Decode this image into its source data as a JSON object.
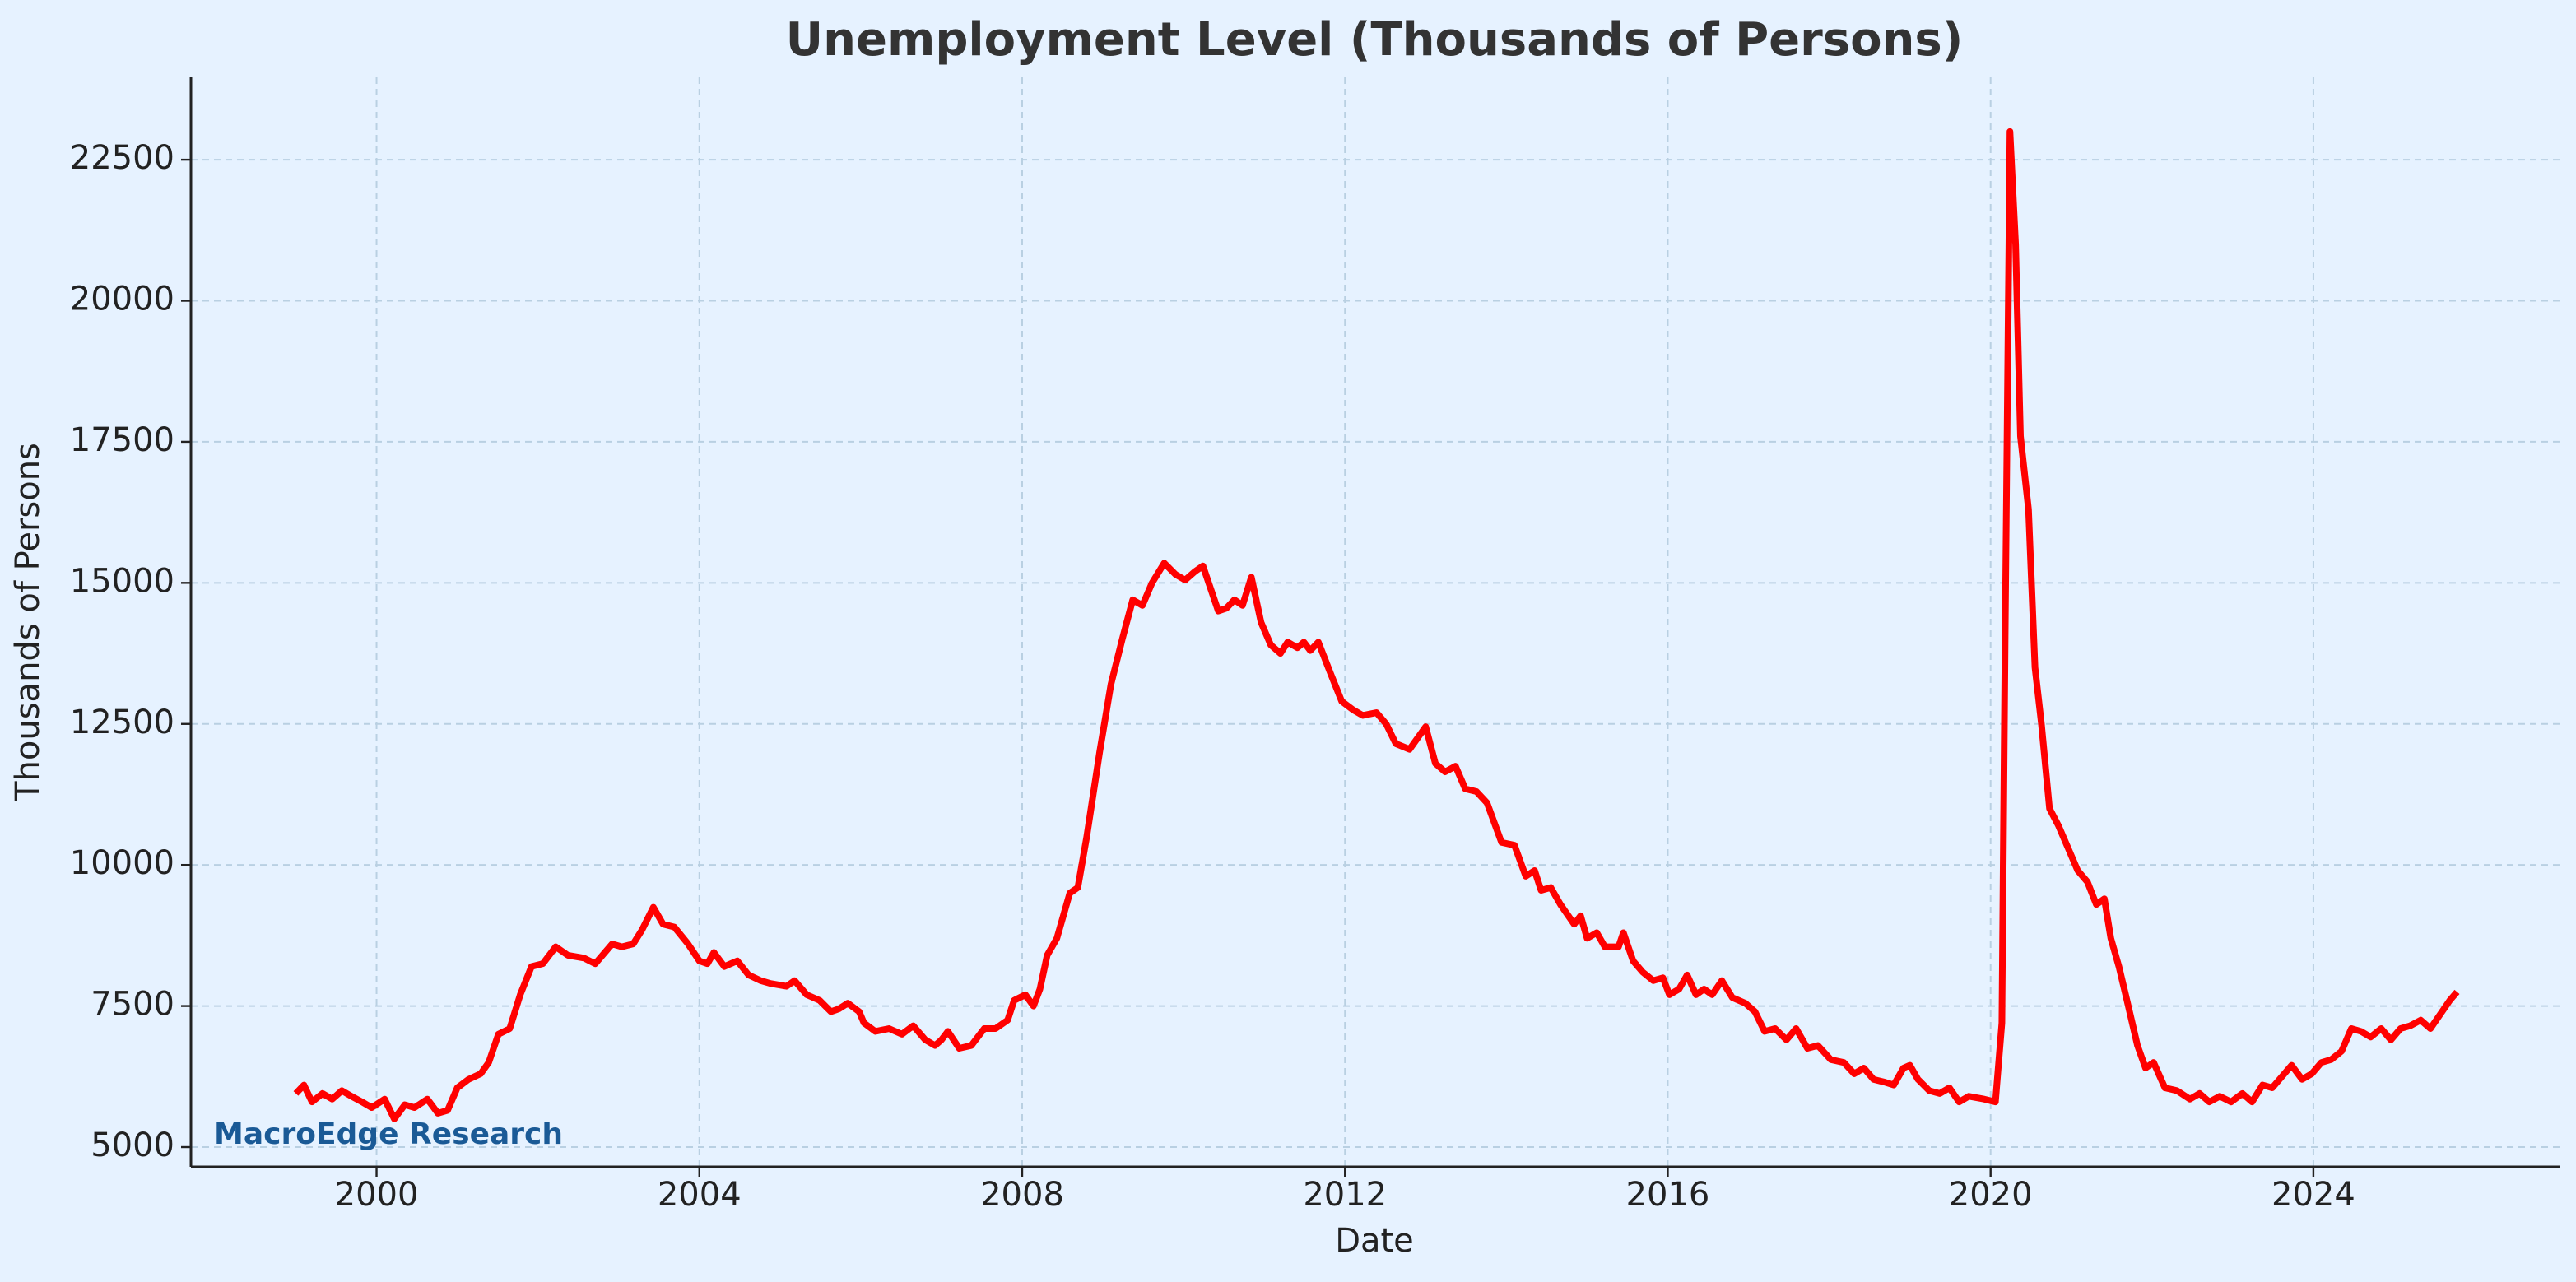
{
  "chart_data": {
    "type": "line",
    "title": "Unemployment Level (Thousands of Persons)",
    "x_label": "Date",
    "y_label": "Thousands of Persons",
    "watermark": "MacroEdge Research",
    "color": "#ff0000",
    "grid": true,
    "xlim": [
      1997.7,
      2027.05
    ],
    "ylim": [
      4650,
      23960
    ],
    "xticks": [
      2000,
      2004,
      2008,
      2012,
      2016,
      2020,
      2024
    ],
    "yticks": [
      5000,
      7500,
      10000,
      12500,
      15000,
      17500,
      20000,
      22500
    ],
    "x": [
      1999.0,
      1999.1,
      1999.2,
      1999.33,
      1999.45,
      1999.57,
      1999.69,
      1999.82,
      1999.94,
      2000.1,
      2000.22,
      2000.35,
      2000.47,
      2000.63,
      2000.76,
      2000.88,
      2001.0,
      2001.14,
      2001.29,
      2001.39,
      2001.51,
      2001.65,
      2001.78,
      2001.92,
      2002.06,
      2002.22,
      2002.37,
      2002.57,
      2002.71,
      2002.92,
      2003.04,
      2003.18,
      2003.29,
      2003.43,
      2003.55,
      2003.69,
      2003.86,
      2004.0,
      2004.1,
      2004.18,
      2004.31,
      2004.47,
      2004.61,
      2004.76,
      2004.88,
      2005.08,
      2005.18,
      2005.33,
      2005.49,
      2005.63,
      2005.73,
      2005.84,
      2005.98,
      2006.04,
      2006.18,
      2006.35,
      2006.51,
      2006.65,
      2006.8,
      2006.92,
      2007.0,
      2007.08,
      2007.22,
      2007.37,
      2007.53,
      2007.67,
      2007.82,
      2007.9,
      2008.04,
      2008.14,
      2008.22,
      2008.31,
      2008.43,
      2008.59,
      2008.69,
      2008.8,
      2008.96,
      2009.1,
      2009.24,
      2009.37,
      2009.49,
      2009.61,
      2009.76,
      2009.9,
      2010.02,
      2010.14,
      2010.24,
      2010.43,
      2010.53,
      2010.63,
      2010.73,
      2010.84,
      2010.96,
      2011.08,
      2011.2,
      2011.29,
      2011.41,
      2011.49,
      2011.57,
      2011.67,
      2011.82,
      2011.96,
      2012.1,
      2012.22,
      2012.39,
      2012.51,
      2012.63,
      2012.8,
      2013.0,
      2013.12,
      2013.24,
      2013.37,
      2013.49,
      2013.63,
      2013.76,
      2013.94,
      2014.1,
      2014.24,
      2014.35,
      2014.43,
      2014.55,
      2014.67,
      2014.84,
      2014.92,
      2015.0,
      2015.12,
      2015.22,
      2015.39,
      2015.45,
      2015.57,
      2015.69,
      2015.82,
      2015.94,
      2016.02,
      2016.14,
      2016.24,
      2016.35,
      2016.45,
      2016.55,
      2016.67,
      2016.8,
      2016.96,
      2017.08,
      2017.2,
      2017.33,
      2017.47,
      2017.59,
      2017.73,
      2017.86,
      2018.02,
      2018.18,
      2018.31,
      2018.43,
      2018.55,
      2018.69,
      2018.8,
      2018.92,
      2019.0,
      2019.1,
      2019.24,
      2019.37,
      2019.49,
      2019.61,
      2019.73,
      2019.92,
      2020.06,
      2020.14,
      2020.18,
      2020.24,
      2020.31,
      2020.37,
      2020.47,
      2020.55,
      2020.63,
      2020.73,
      2020.84,
      2020.96,
      2021.08,
      2021.2,
      2021.31,
      2021.41,
      2021.49,
      2021.59,
      2021.69,
      2021.82,
      2021.92,
      2022.02,
      2022.16,
      2022.31,
      2022.47,
      2022.59,
      2022.71,
      2022.84,
      2022.98,
      2023.12,
      2023.24,
      2023.37,
      2023.49,
      2023.61,
      2023.73,
      2023.86,
      2023.98,
      2024.1,
      2024.22,
      2024.35,
      2024.47,
      2024.59,
      2024.71,
      2024.84,
      2024.96,
      2025.08,
      2025.2,
      2025.33,
      2025.45,
      2025.57,
      2025.69,
      2025.78
    ],
    "values": [
      5950,
      6100,
      5800,
      5950,
      5850,
      6000,
      5900,
      5800,
      5700,
      5850,
      5500,
      5750,
      5700,
      5850,
      5600,
      5650,
      6050,
      6200,
      6300,
      6500,
      7000,
      7100,
      7700,
      8200,
      8250,
      8550,
      8400,
      8350,
      8250,
      8600,
      8550,
      8600,
      8850,
      9250,
      8950,
      8900,
      8600,
      8300,
      8250,
      8450,
      8200,
      8300,
      8050,
      7950,
      7900,
      7850,
      7950,
      7700,
      7600,
      7400,
      7450,
      7550,
      7400,
      7200,
      7050,
      7100,
      7000,
      7150,
      6900,
      6800,
      6900,
      7050,
      6750,
      6800,
      7100,
      7100,
      7250,
      7600,
      7700,
      7500,
      7800,
      8400,
      8700,
      9500,
      9600,
      10500,
      12000,
      13200,
      14000,
      14700,
      14600,
      15000,
      15350,
      15150,
      15050,
      15200,
      15300,
      14500,
      14550,
      14700,
      14600,
      15100,
      14300,
      13900,
      13750,
      13950,
      13850,
      13950,
      13800,
      13950,
      13400,
      12900,
      12750,
      12650,
      12700,
      12500,
      12150,
      12050,
      12450,
      11800,
      11650,
      11750,
      11350,
      11300,
      11100,
      10400,
      10350,
      9800,
      9900,
      9550,
      9600,
      9300,
      8950,
      9100,
      8700,
      8800,
      8550,
      8550,
      8800,
      8300,
      8100,
      7950,
      8000,
      7700,
      7800,
      8050,
      7700,
      7800,
      7700,
      7950,
      7650,
      7550,
      7400,
      7050,
      7100,
      6900,
      7100,
      6750,
      6800,
      6550,
      6500,
      6300,
      6400,
      6200,
      6150,
      6100,
      6400,
      6450,
      6200,
      6000,
      5950,
      6050,
      5800,
      5900,
      5850,
      5800,
      7200,
      14000,
      23000,
      21000,
      17600,
      16300,
      13500,
      12500,
      11000,
      10700,
      10300,
      9900,
      9700,
      9300,
      9400,
      8700,
      8200,
      7600,
      6800,
      6400,
      6500,
      6050,
      6000,
      5850,
      5950,
      5800,
      5900,
      5800,
      5950,
      5800,
      6100,
      6050,
      6250,
      6450,
      6200,
      6300,
      6500,
      6550,
      6700,
      7100,
      7050,
      6950,
      7100,
      6900,
      7100,
      7150,
      7250,
      7100,
      7350,
      7600,
      7750
    ]
  }
}
